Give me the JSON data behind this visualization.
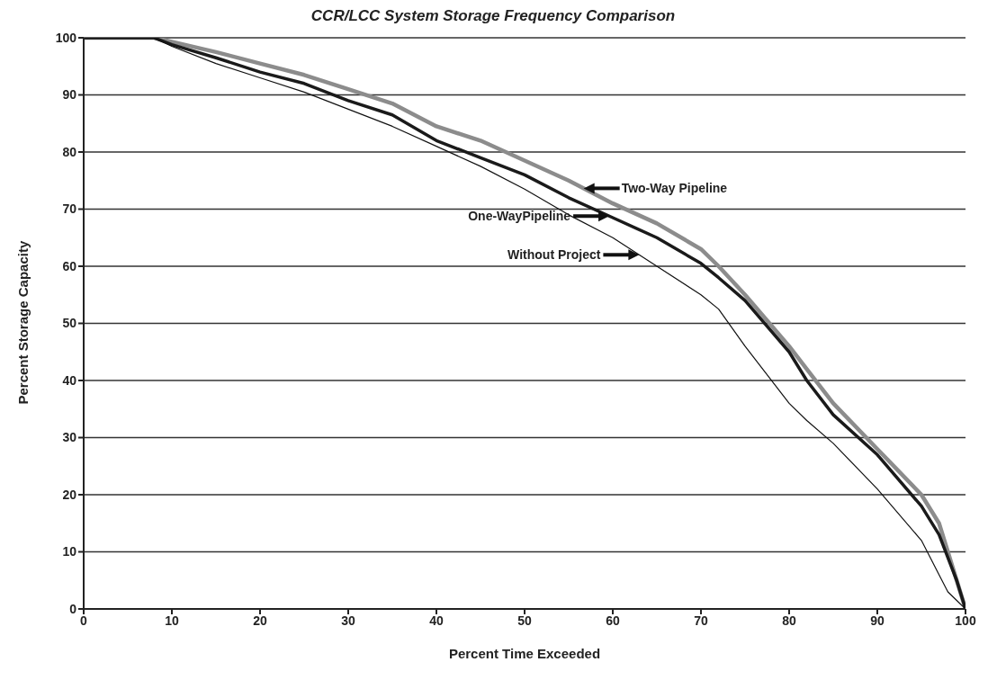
{
  "chart_data": {
    "type": "line",
    "title": "CCR/LCC System Storage Frequency Comparison",
    "xlabel": "Percent Time Exceeded",
    "ylabel": "Percent Storage Capacity",
    "x": [
      0,
      8,
      10,
      15,
      20,
      25,
      30,
      35,
      40,
      45,
      50,
      55,
      60,
      65,
      70,
      72,
      75,
      80,
      82,
      85,
      90,
      95,
      97,
      98,
      99,
      100
    ],
    "series": [
      {
        "name": "Two-Way Pipeline",
        "color": "#8c8c8c",
        "values": [
          100,
          100,
          99.3,
          97.5,
          95.5,
          93.5,
          91,
          88.5,
          84.5,
          82,
          78.5,
          75,
          71,
          67.5,
          63,
          60,
          55,
          46,
          42,
          36,
          28,
          20,
          15,
          10,
          5,
          0
        ]
      },
      {
        "name": "One-WayPipeline",
        "color": "#1a1a1a",
        "values": [
          100,
          100,
          98.8,
          96.5,
          94,
          92,
          89,
          86.5,
          82,
          79,
          76,
          72,
          68.5,
          65,
          60.5,
          58,
          54,
          45,
          40,
          34,
          27,
          18,
          13,
          9,
          5,
          0
        ]
      },
      {
        "name": "Without Project",
        "color": "#111111",
        "values": [
          100,
          100,
          98.5,
          95.5,
          93,
          90.5,
          87.5,
          84.5,
          81,
          77.5,
          73.5,
          69,
          65,
          60,
          55,
          52.5,
          46,
          36,
          33,
          29,
          21,
          12,
          6,
          3,
          1.5,
          0
        ]
      }
    ],
    "xlim": [
      0,
      100
    ],
    "xticks": [
      0,
      10,
      20,
      30,
      40,
      50,
      60,
      70,
      80,
      90,
      100
    ],
    "ylim": [
      0,
      100
    ],
    "yticks": [
      0,
      10,
      20,
      30,
      40,
      50,
      60,
      70,
      80,
      90,
      100
    ],
    "grid": "y",
    "legend": "center",
    "marker": "none",
    "line_style": "solid"
  }
}
